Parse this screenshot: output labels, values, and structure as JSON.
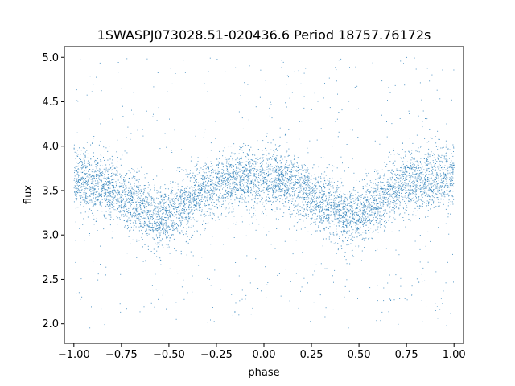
{
  "chart_data": {
    "type": "scatter",
    "title": "1SWASPJ073028.51-020436.6 Period 18757.76172s",
    "xlabel": "phase",
    "ylabel": "flux",
    "xlim": [
      -1.05,
      1.05
    ],
    "ylim": [
      1.78,
      5.12
    ],
    "x_ticks": [
      -1.0,
      -0.75,
      -0.5,
      -0.25,
      0.0,
      0.25,
      0.5,
      0.75,
      1.0
    ],
    "x_tick_labels": [
      "−1.00",
      "−0.75",
      "−0.50",
      "−0.25",
      "0.00",
      "0.25",
      "0.50",
      "0.75",
      "1.00"
    ],
    "y_ticks": [
      2.0,
      2.5,
      3.0,
      3.5,
      4.0,
      4.5,
      5.0
    ],
    "y_tick_labels": [
      "2.0",
      "2.5",
      "3.0",
      "3.5",
      "4.0",
      "4.5",
      "5.0"
    ],
    "grid": false,
    "legend": "none",
    "point_color": "#1f77b4",
    "series": [
      {
        "x": [
          -1.0,
          -0.9,
          -0.8,
          -0.7,
          -0.6,
          -0.55,
          -0.5,
          -0.4,
          -0.3,
          -0.2,
          -0.1,
          0.0,
          0.1,
          0.2,
          0.3,
          0.4,
          0.45,
          0.5,
          0.6,
          0.7,
          0.8,
          0.9,
          1.0
        ],
        "y": [
          3.62,
          3.6,
          3.52,
          3.38,
          3.24,
          3.2,
          3.23,
          3.38,
          3.52,
          3.6,
          3.63,
          3.65,
          3.6,
          3.52,
          3.38,
          3.24,
          3.2,
          3.23,
          3.38,
          3.52,
          3.6,
          3.63,
          3.65
        ],
        "scatter_sd": 0.17
      }
    ]
  }
}
